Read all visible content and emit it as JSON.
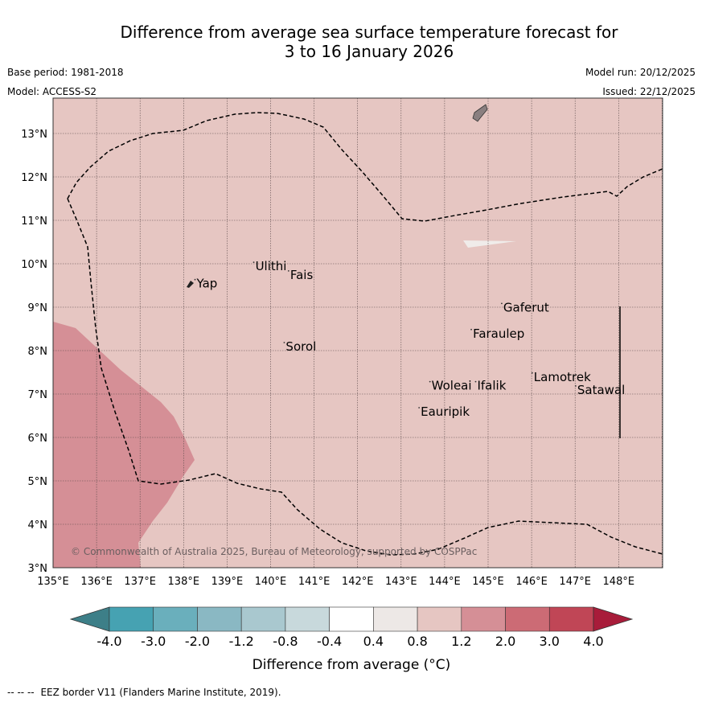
{
  "title": {
    "line1": "Difference from average sea surface temperature forecast for",
    "line2": "3 to 16 January 2026"
  },
  "meta": {
    "base_period": "Base period: 1981-2018",
    "model": "Model: ACCESS-S2",
    "model_run": "Model run: 20/12/2025",
    "issued": "Issued: 22/12/2025"
  },
  "map": {
    "lon_ticks": [
      "135°E",
      "136°E",
      "137°E",
      "138°E",
      "139°E",
      "140°E",
      "141°E",
      "142°E",
      "143°E",
      "144°E",
      "145°E",
      "146°E",
      "147°E",
      "148°E"
    ],
    "lat_ticks": [
      "3°N",
      "4°N",
      "5°N",
      "6°N",
      "7°N",
      "8°N",
      "9°N",
      "10°N",
      "11°N",
      "12°N",
      "13°N"
    ],
    "background_color": "#e6c6c2",
    "warm_anomaly_color": "#d58f96",
    "places": [
      {
        "name": "Yap",
        "lon": 138.3,
        "lat": 9.45
      },
      {
        "name": "Ulithi",
        "lon": 139.65,
        "lat": 9.85
      },
      {
        "name": "Fais",
        "lon": 140.45,
        "lat": 9.65
      },
      {
        "name": "Sorol",
        "lon": 140.35,
        "lat": 8.0
      },
      {
        "name": "Gaferut",
        "lon": 145.35,
        "lat": 8.9
      },
      {
        "name": "Faraulep",
        "lon": 144.65,
        "lat": 8.3
      },
      {
        "name": "Woleai",
        "lon": 143.7,
        "lat": 7.1
      },
      {
        "name": "Ifalik",
        "lon": 144.75,
        "lat": 7.1
      },
      {
        "name": "Lamotrek",
        "lon": 146.05,
        "lat": 7.3
      },
      {
        "name": "Satawal",
        "lon": 147.05,
        "lat": 7.0
      },
      {
        "name": "Eauripik",
        "lon": 143.45,
        "lat": 6.5
      }
    ],
    "copyright": "© Commonwealth of Australia 2025, Bureau of Meteorology, supported by COSPPac"
  },
  "colorbar": {
    "tick_labels": [
      "-4.0",
      "-3.0",
      "-2.0",
      "-1.2",
      "-0.8",
      "-0.4",
      "0.4",
      "0.8",
      "1.2",
      "2.0",
      "3.0",
      "4.0"
    ],
    "colors": [
      "#3d7f88",
      "#46a2b2",
      "#6aafbc",
      "#8ab8c3",
      "#a9c8cf",
      "#c8d9dc",
      "#ffffff",
      "#ede8e6",
      "#e6c6c2",
      "#d58f96",
      "#cc6b75",
      "#c04656",
      "#a81c3a"
    ],
    "label": "Difference from average (°C)"
  },
  "footer": {
    "marker": "--  --  --",
    "text": "EEZ border V11 (Flanders Marine Institute, 2019)."
  }
}
